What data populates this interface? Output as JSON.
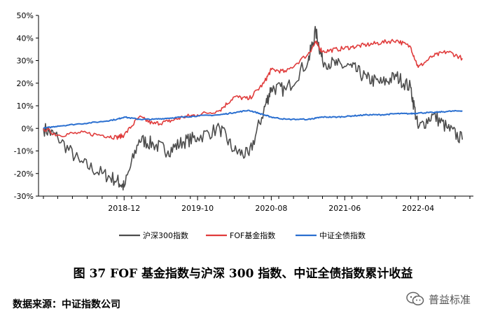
{
  "chart_data": {
    "type": "line",
    "title": "",
    "xlabel": "",
    "ylabel": "",
    "ylim": [
      -30,
      50
    ],
    "yticks": [
      "50%",
      "40%",
      "30%",
      "20%",
      "10%",
      "0%",
      "-10%",
      "-20%",
      "-30%"
    ],
    "xticks": [
      "2018-12",
      "2019-10",
      "2020-08",
      "2021-06",
      "2022-04"
    ],
    "x": [
      "2018-01",
      "2018-03",
      "2018-06",
      "2018-09",
      "2018-11",
      "2018-12",
      "2019-02",
      "2019-04",
      "2019-06",
      "2019-08",
      "2019-10",
      "2020-01",
      "2020-03",
      "2020-05",
      "2020-07",
      "2020-08",
      "2020-10",
      "2021-01",
      "2021-02",
      "2021-03",
      "2021-05",
      "2021-07",
      "2021-09",
      "2021-11",
      "2022-01",
      "2022-03",
      "2022-04",
      "2022-06",
      "2022-08",
      "2022-10"
    ],
    "series": [
      {
        "name": "沪深300指数",
        "color": "#4d4d4d",
        "values": [
          0,
          -4,
          -15,
          -20,
          -23,
          -26,
          -5,
          -7,
          -10,
          -6,
          -4,
          0,
          -10,
          -12,
          8,
          18,
          17,
          30,
          43,
          30,
          28,
          27,
          22,
          20,
          23,
          18,
          0,
          6,
          0,
          -5
        ]
      },
      {
        "name": "FOF基金指数",
        "color": "#e03c3c",
        "values": [
          0,
          -3,
          -2,
          -3,
          -4,
          -3,
          5,
          2,
          3,
          5,
          6,
          8,
          14,
          13,
          20,
          26,
          25,
          33,
          38,
          34,
          35,
          36,
          37,
          38,
          39,
          36,
          27,
          32,
          34,
          31
        ]
      },
      {
        "name": "中证全债指数",
        "color": "#2a6fd0",
        "values": [
          0,
          1,
          2,
          3,
          4,
          5,
          4,
          4,
          4.5,
          5,
          5.5,
          6,
          7,
          8,
          6,
          5,
          4,
          4,
          4.5,
          5,
          5,
          5.5,
          6,
          6,
          6.5,
          6.5,
          6.8,
          7,
          7.5,
          7.8
        ]
      }
    ],
    "legend_position": "bottom"
  },
  "caption": "图 37 FOF 基金指数与沪深 300 指数、中证全债指数累计收益",
  "source": "数据来源：中证指数公司",
  "watermark": "普益标准"
}
